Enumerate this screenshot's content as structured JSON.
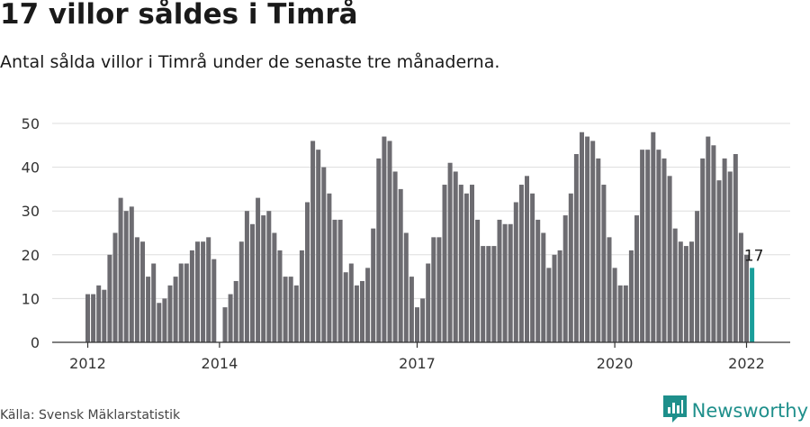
{
  "title": "17 villor såldes i Timrå",
  "subtitle": "Antal sålda villor i Timrå under de senaste tre månaderna.",
  "source": "Källa: Svensk Mäklarstatistik",
  "brand": {
    "name": "Newsworthy",
    "icon": "newsworthy-logo-icon",
    "color": "#1e8f8b"
  },
  "colors": {
    "bar": "#6d6c71",
    "highlight": "#1a9e9a",
    "grid": "#dddddd",
    "axis": "#333333",
    "text": "#333333"
  },
  "chart_data": {
    "type": "bar",
    "title": "17 villor såldes i Timrå",
    "subtitle": "Antal sålda villor i Timrå under de senaste tre månaderna.",
    "xlabel": "",
    "ylabel": "",
    "ylim": [
      0,
      50
    ],
    "yticks": [
      0,
      10,
      20,
      30,
      40,
      50
    ],
    "grid": true,
    "x_start": "2012-01",
    "x_end": "2022-03",
    "xtick_labels": [
      {
        "label": "2012",
        "x": "2012-01"
      },
      {
        "label": "2014",
        "x": "2014-01"
      },
      {
        "label": "2017",
        "x": "2017-01"
      },
      {
        "label": "2020",
        "x": "2020-01"
      },
      {
        "label": "2022",
        "x": "2022-01"
      }
    ],
    "highlight_label": "17",
    "series": [
      {
        "values": [
          11,
          11,
          13,
          12,
          20,
          25,
          33,
          30,
          31,
          24,
          23,
          15,
          18,
          9,
          10,
          13,
          15,
          18,
          18,
          21,
          23,
          23,
          24,
          19,
          0,
          8,
          11,
          14,
          23,
          30,
          27,
          33,
          29,
          30,
          25,
          21,
          15,
          15,
          13,
          21,
          32,
          46,
          44,
          40,
          34,
          28,
          28,
          16,
          18,
          13,
          14,
          17,
          26,
          42,
          47,
          46,
          39,
          35,
          25,
          15,
          8,
          10,
          18,
          24,
          24,
          36,
          41,
          39,
          36,
          34,
          36,
          28,
          22,
          22,
          22,
          28,
          27,
          27,
          32,
          36,
          38,
          34,
          28,
          25,
          17,
          20,
          21,
          29,
          34,
          43,
          48,
          47,
          46,
          42,
          36,
          24,
          17,
          13,
          13,
          21,
          29,
          44,
          44,
          48,
          44,
          42,
          38,
          26,
          23,
          22,
          23,
          30,
          42,
          47,
          45,
          37,
          42,
          39,
          43,
          25,
          20,
          17
        ]
      }
    ]
  }
}
